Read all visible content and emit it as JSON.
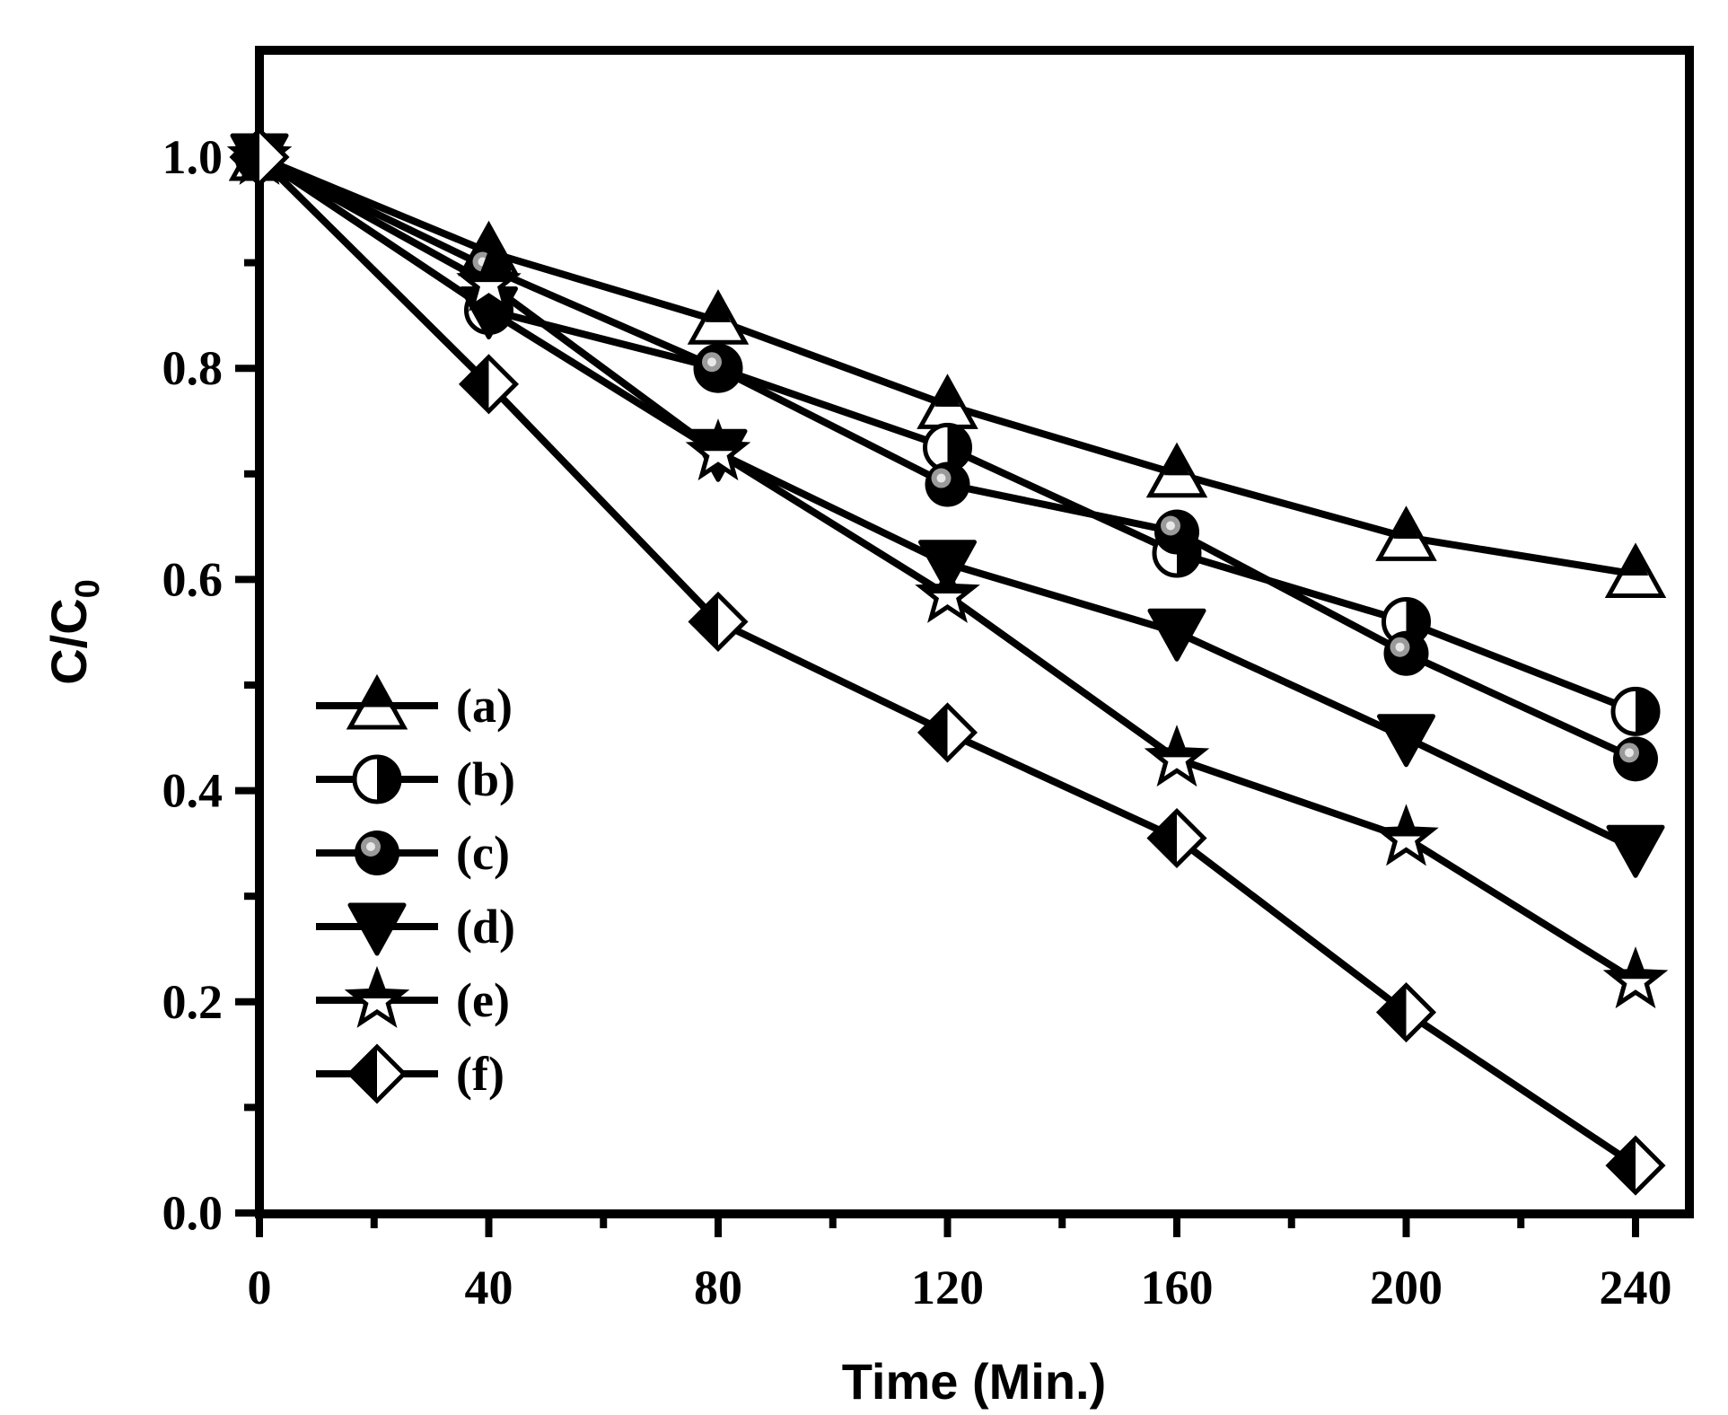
{
  "chart_data": {
    "type": "line",
    "title": "",
    "xlabel": "Time (Min.)",
    "ylabel": "C/C",
    "ylabel_subscript": "0",
    "xlim": [
      0,
      250
    ],
    "ylim": [
      0.0,
      1.1
    ],
    "x_ticks": [
      0,
      40,
      80,
      120,
      160,
      200,
      240
    ],
    "x_tick_labels": [
      "0",
      "40",
      "80",
      "120",
      "160",
      "200",
      "240"
    ],
    "y_ticks": [
      0.0,
      0.2,
      0.4,
      0.6,
      0.8,
      1.0
    ],
    "y_tick_labels": [
      "0.0",
      "0.2",
      "0.4",
      "0.6",
      "0.8",
      "1.0"
    ],
    "grid": false,
    "legend_position": "lower-left",
    "x": [
      0,
      40,
      80,
      120,
      160,
      200,
      240
    ],
    "series": [
      {
        "name": "(a)",
        "marker": "triangle-up-half",
        "values": [
          1.0,
          0.91,
          0.845,
          0.765,
          0.7,
          0.64,
          0.605
        ]
      },
      {
        "name": "(b)",
        "marker": "circle-half-right",
        "values": [
          1.0,
          0.855,
          0.8,
          0.725,
          0.625,
          0.56,
          0.475
        ]
      },
      {
        "name": "(c)",
        "marker": "circle-shaded",
        "values": [
          1.0,
          0.895,
          0.8,
          0.69,
          0.645,
          0.53,
          0.43
        ]
      },
      {
        "name": "(d)",
        "marker": "triangle-down-filled",
        "values": [
          1.0,
          0.855,
          0.72,
          0.615,
          0.55,
          0.45,
          0.345
        ]
      },
      {
        "name": "(e)",
        "marker": "star-half",
        "values": [
          1.0,
          0.88,
          0.72,
          0.585,
          0.43,
          0.355,
          0.22
        ]
      },
      {
        "name": "(f)",
        "marker": "diamond-half-left",
        "values": [
          1.0,
          0.785,
          0.56,
          0.455,
          0.355,
          0.19,
          0.045
        ]
      }
    ]
  }
}
